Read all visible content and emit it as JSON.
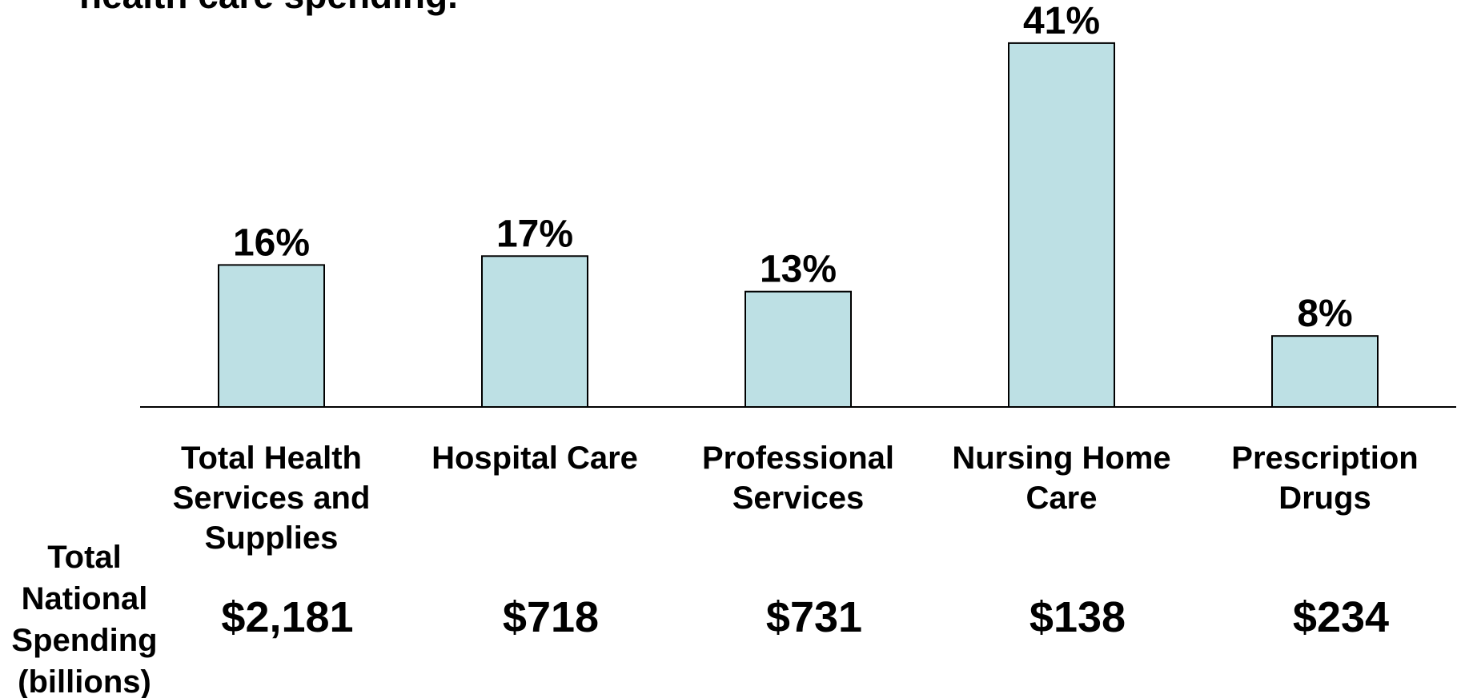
{
  "chart_data": {
    "type": "bar",
    "title": "health care spending.",
    "categories": [
      "Total Health Services and Supplies",
      "Hospital Care",
      "Professional Services",
      "Nursing Home Care",
      "Prescription Drugs"
    ],
    "values": [
      16,
      17,
      13,
      41,
      8
    ],
    "value_labels": [
      "16%",
      "17%",
      "13%",
      "41%",
      "8%"
    ],
    "color": "#bde0e4",
    "spending": {
      "label": "Total National Spending (billions)",
      "values": [
        2181,
        718,
        731,
        138,
        234
      ],
      "value_labels": [
        "$2,181",
        "$718",
        "$731",
        "$138",
        "$234"
      ]
    }
  }
}
